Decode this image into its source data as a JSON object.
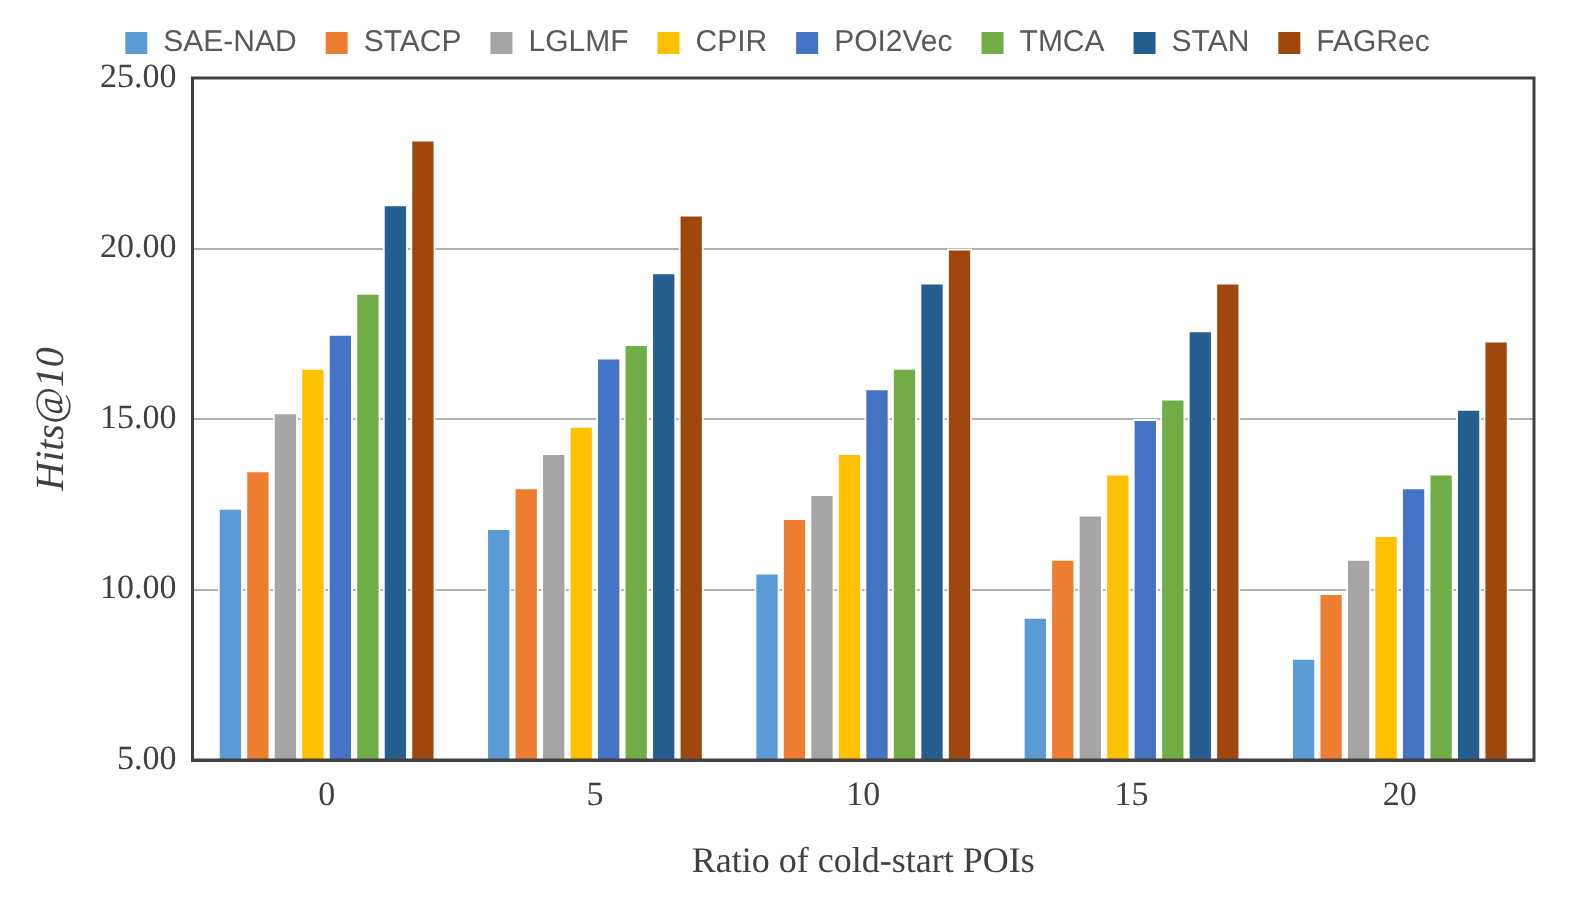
{
  "chart_data": {
    "type": "bar",
    "xlabel": "Ratio of cold-start POIs",
    "ylabel": "Hits@10",
    "categories": [
      "0",
      "5",
      "10",
      "15",
      "20"
    ],
    "series": [
      {
        "name": "SAE-NAD",
        "color": "#5b9bd5",
        "values": [
          12.4,
          11.8,
          10.5,
          9.2,
          8.0
        ]
      },
      {
        "name": "STACP",
        "color": "#ed7d31",
        "values": [
          13.5,
          13.0,
          12.1,
          10.9,
          9.9
        ]
      },
      {
        "name": "LGLMF",
        "color": "#a5a5a5",
        "values": [
          15.2,
          14.0,
          12.8,
          12.2,
          10.9
        ]
      },
      {
        "name": "CPIR",
        "color": "#ffc000",
        "values": [
          16.5,
          14.8,
          14.0,
          13.4,
          11.6
        ]
      },
      {
        "name": "POI2Vec",
        "color": "#4472c4",
        "values": [
          17.5,
          16.8,
          15.9,
          15.0,
          13.0
        ]
      },
      {
        "name": "TMCA",
        "color": "#70ad47",
        "values": [
          18.7,
          17.2,
          16.5,
          15.6,
          13.4
        ]
      },
      {
        "name": "STAN",
        "color": "#255e91",
        "values": [
          21.3,
          19.3,
          19.0,
          17.6,
          15.3
        ]
      },
      {
        "name": "FAGRec",
        "color": "#9e480e",
        "values": [
          23.2,
          21.0,
          20.0,
          19.0,
          17.3
        ]
      }
    ],
    "ylim": [
      5,
      25
    ],
    "yticks": [
      {
        "value": 5,
        "label": "5.00"
      },
      {
        "value": 10,
        "label": "10.00"
      },
      {
        "value": 15,
        "label": "15.00"
      },
      {
        "value": 20,
        "label": "20.00"
      },
      {
        "value": 25,
        "label": "25.00"
      }
    ],
    "grid": "y",
    "legend": "top"
  }
}
